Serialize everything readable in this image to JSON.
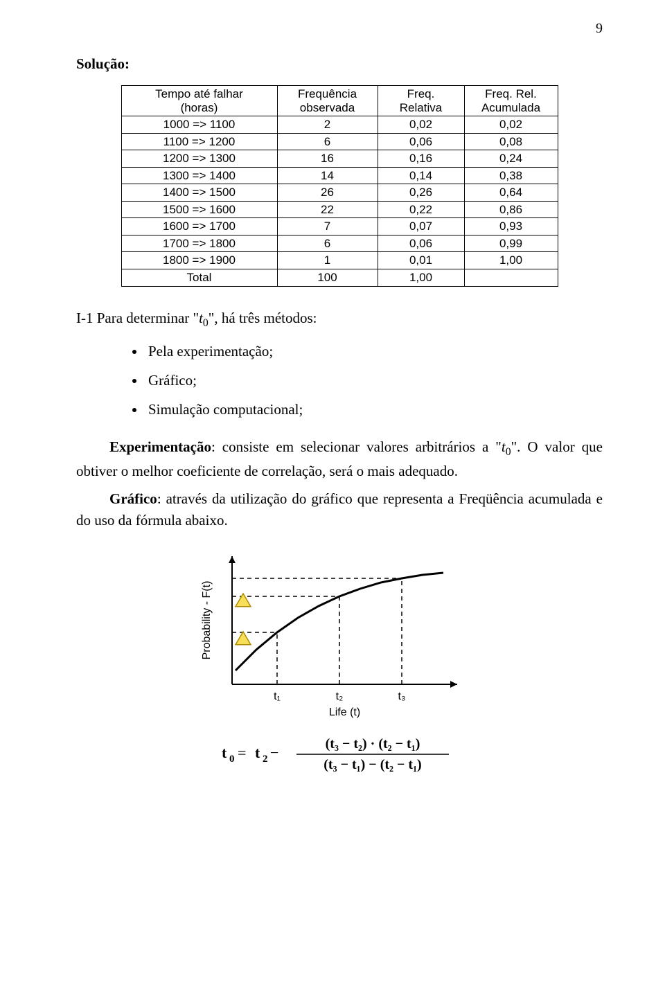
{
  "pageNumber": "9",
  "heading": "Solução:",
  "table": {
    "headers": {
      "c1a": "Tempo até falhar",
      "c1b": "(horas)",
      "c2a": "Frequência",
      "c2b": "observada",
      "c3a": "Freq.",
      "c3b": "Relativa",
      "c4a": "Freq. Rel.",
      "c4b": "Acumulada"
    },
    "rows": [
      {
        "range": "1000  =>  1100",
        "freq": "2",
        "rel": "0,02",
        "acc": "0,02"
      },
      {
        "range": "1100  =>  1200",
        "freq": "6",
        "rel": "0,06",
        "acc": "0,08"
      },
      {
        "range": "1200  =>  1300",
        "freq": "16",
        "rel": "0,16",
        "acc": "0,24"
      },
      {
        "range": "1300  =>  1400",
        "freq": "14",
        "rel": "0,14",
        "acc": "0,38"
      },
      {
        "range": "1400  =>  1500",
        "freq": "26",
        "rel": "0,26",
        "acc": "0,64"
      },
      {
        "range": "1500  =>  1600",
        "freq": "22",
        "rel": "0,22",
        "acc": "0,86"
      },
      {
        "range": "1600  =>  1700",
        "freq": "7",
        "rel": "0,07",
        "acc": "0,93"
      },
      {
        "range": "1700  =>  1800",
        "freq": "6",
        "rel": "0,06",
        "acc": "0,99"
      },
      {
        "range": "1800  =>  1900",
        "freq": "1",
        "rel": "0,01",
        "acc": "1,00"
      }
    ],
    "total": {
      "label": "Total",
      "freq": "100",
      "rel": "1,00",
      "acc": ""
    }
  },
  "text": {
    "i1_pre": "I-1 Para determinar \"",
    "i1_var": "t",
    "i1_sub": "0",
    "i1_post": "\", há três métodos:",
    "m1": "Pela experimentação;",
    "m2": "Gráfico;",
    "m3": "Simulação computacional;",
    "exp_bold": "Experimentação",
    "exp_pre": ": consiste em selecionar valores arbitrários a \"",
    "exp_var": "t",
    "exp_sub": "0",
    "exp_post": "\". O valor que obtiver o melhor coeficiente de correlação, será o mais adequado.",
    "graf_bold": "Gráfico",
    "graf_rest": ": através da utilização do gráfico que representa a Freqüência acumulada e do uso da fórmula abaixo."
  },
  "chart": {
    "ylabel": "Probability - F(t)",
    "xlabel": "Life (t)",
    "xticks": [
      "t₁",
      "t₂",
      "t₃"
    ],
    "curve_color": "#000000",
    "dash_color": "#000000",
    "triangle_fill": "#f8df5a",
    "triangle_stroke": "#b08c00",
    "background": "#ffffff",
    "axis_width": 2,
    "curve_points": [
      [
        60,
        190
      ],
      [
        90,
        160
      ],
      [
        120,
        135
      ],
      [
        150,
        114
      ],
      [
        180,
        97
      ],
      [
        210,
        83
      ],
      [
        240,
        72
      ],
      [
        270,
        63
      ],
      [
        300,
        57
      ],
      [
        330,
        52
      ],
      [
        360,
        49
      ]
    ],
    "xtick_positions": [
      120,
      210,
      300
    ],
    "curve_y_at_ticks": [
      135,
      83,
      57
    ],
    "triangle_y_positions": [
      90,
      145
    ]
  },
  "formula": {
    "lhs_var": "t",
    "lhs_sub": "0",
    "eq": " = ",
    "rhs_var": "t",
    "rhs_sub": "2",
    "minus": " − ",
    "num": "(t₃ − t₂) · (t₂ − t₁)",
    "den": "(t₃ − t₁) − (t₂ − t₁)"
  }
}
